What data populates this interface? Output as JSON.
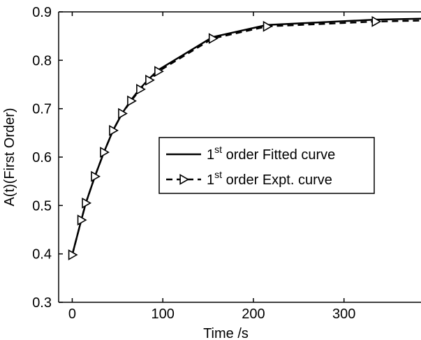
{
  "chart_data": {
    "type": "line",
    "title": "",
    "xlabel": "Time /s",
    "ylabel": "A(t)(First Order)",
    "xlim": [
      -15,
      385
    ],
    "ylim": [
      0.3,
      0.9
    ],
    "xticks": [
      0,
      100,
      200,
      300
    ],
    "yticks": [
      0.3,
      0.4,
      0.5,
      0.6,
      0.7,
      0.8,
      0.9
    ],
    "xtick_labels": [
      "0",
      "100",
      "200",
      "300"
    ],
    "ytick_labels": [
      "0.3",
      "0.4",
      "0.5",
      "0.6",
      "0.7",
      "0.8",
      "0.9"
    ],
    "grid": false,
    "legend_position": "center-right",
    "series": [
      {
        "name": "1st order Fitted curve",
        "legend_main": "1",
        "legend_sup": "st",
        "legend_rest": " order Fitted curve",
        "style": "solid",
        "color": "#000000",
        "x": [
          0,
          10,
          15,
          25,
          35,
          45,
          55,
          65,
          75,
          85,
          95,
          155,
          215,
          335,
          385
        ],
        "y": [
          0.398,
          0.47,
          0.505,
          0.56,
          0.61,
          0.655,
          0.69,
          0.718,
          0.742,
          0.762,
          0.78,
          0.848,
          0.873,
          0.884,
          0.886
        ]
      },
      {
        "name": "1st order Expt. curve",
        "legend_main": "1",
        "legend_sup": "st",
        "legend_rest": " order Expt. curve",
        "style": "dashed",
        "marker": "triangle-right",
        "color": "#000000",
        "x": [
          0,
          10,
          15,
          25,
          35,
          45,
          55,
          65,
          75,
          85,
          95,
          155,
          215,
          335,
          385
        ],
        "y": [
          0.398,
          0.47,
          0.505,
          0.56,
          0.61,
          0.655,
          0.69,
          0.716,
          0.74,
          0.759,
          0.777,
          0.845,
          0.87,
          0.88,
          0.882
        ],
        "marker_x": [
          0,
          10,
          15,
          25,
          35,
          45,
          55,
          65,
          75,
          85,
          95,
          155,
          215,
          335
        ],
        "marker_y": [
          0.398,
          0.47,
          0.505,
          0.56,
          0.61,
          0.655,
          0.69,
          0.716,
          0.74,
          0.759,
          0.777,
          0.845,
          0.87,
          0.88
        ]
      }
    ]
  }
}
